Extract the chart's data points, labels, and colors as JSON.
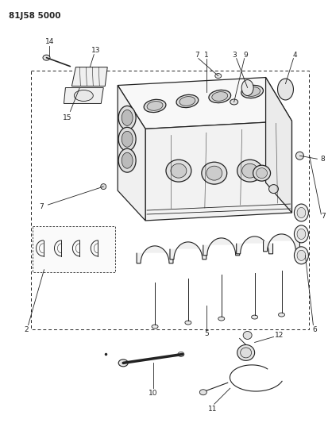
{
  "title": "81J58 5000",
  "bg": "#ffffff",
  "lc": "#222222",
  "fig_w": 4.14,
  "fig_h": 5.33,
  "dpi": 100
}
